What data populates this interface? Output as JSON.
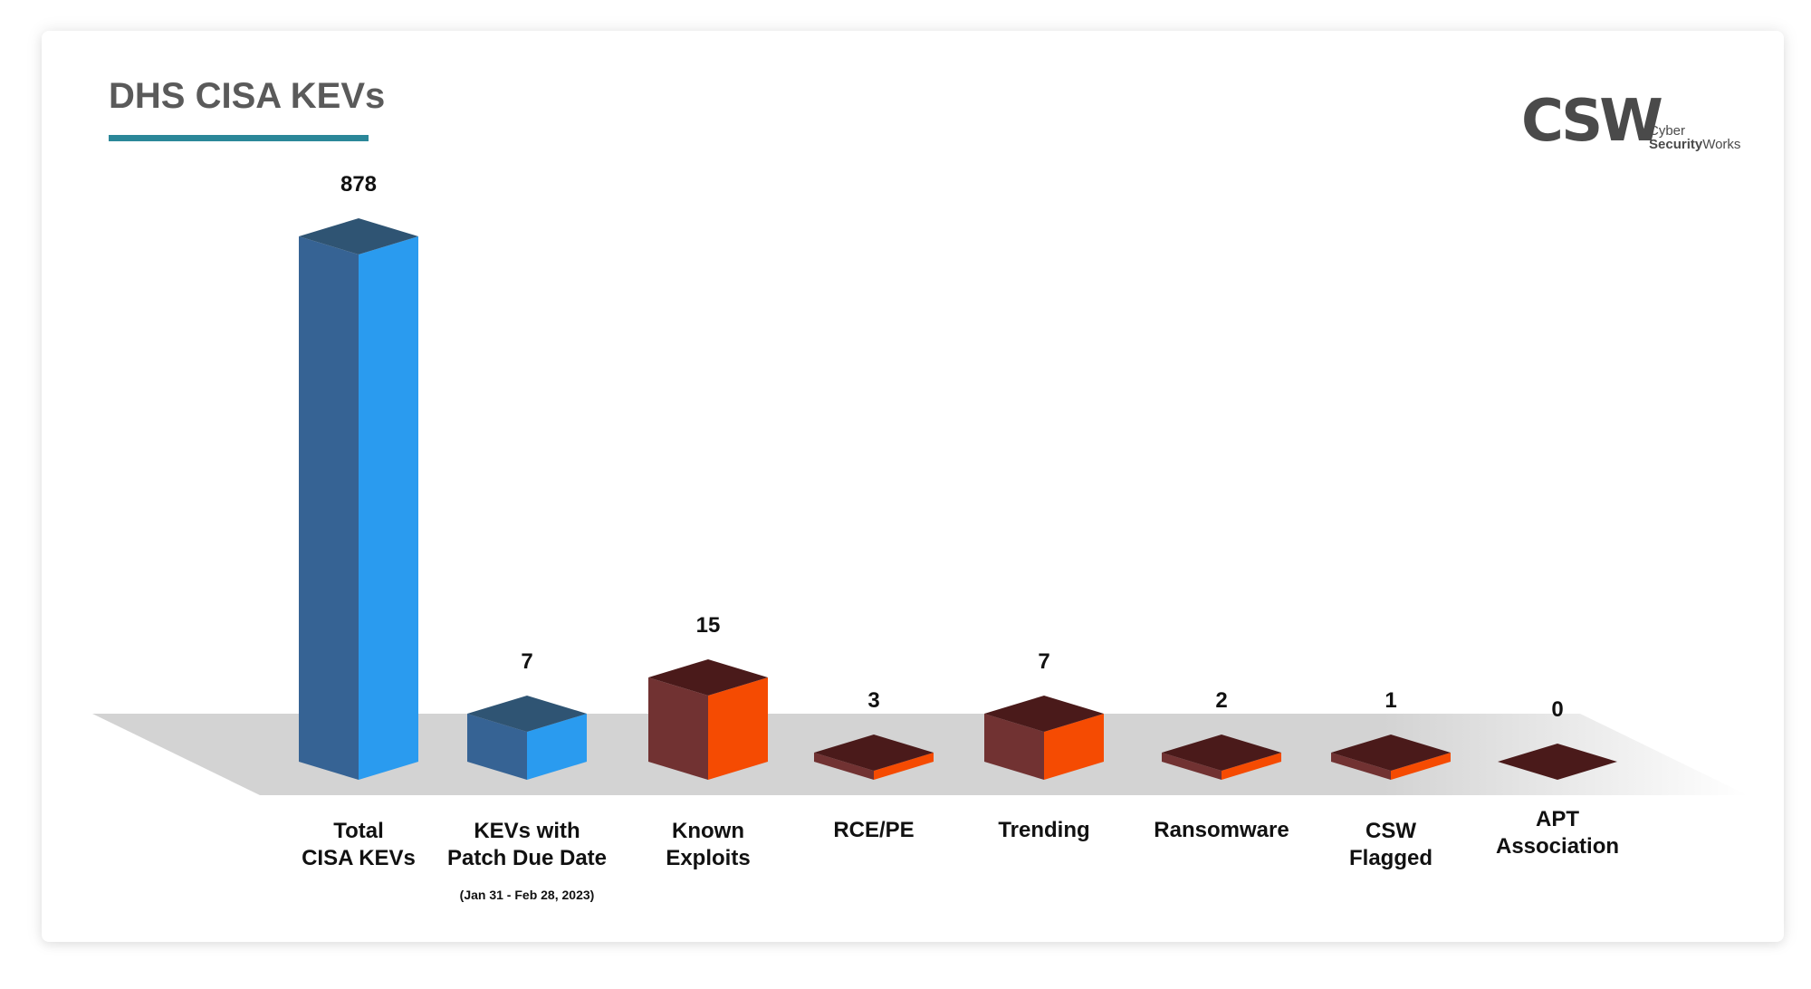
{
  "header": {
    "title": "DHS CISA KEVs"
  },
  "logo": {
    "mark": "CSW",
    "line1": "Cyber",
    "line2_bold": "Security",
    "line2_rest": "Works"
  },
  "colors": {
    "title_text": "#5a5a5a",
    "title_underline": "#2b8799",
    "blue_front": "#2a9bef",
    "blue_side": "#366394",
    "blue_top": "#2f5473",
    "orange_front": "#f54b02",
    "orange_side": "#713232",
    "orange_top": "#4a1a1a",
    "floor": "#d3d3d3"
  },
  "chart_data": {
    "type": "bar",
    "style": "3d-isometric",
    "title": "DHS CISA KEVs",
    "xlabel": "",
    "ylabel": "",
    "categories": [
      [
        "Total",
        "CISA KEVs"
      ],
      [
        "KEVs with",
        "Patch Due Date"
      ],
      [
        "Known",
        "Exploits"
      ],
      [
        "RCE/PE"
      ],
      [
        "Trending"
      ],
      [
        "Ransomware"
      ],
      [
        "CSW",
        "Flagged"
      ],
      [
        "APT",
        "Association"
      ]
    ],
    "notes": [
      "",
      "(Jan 31 - Feb 28, 2023)",
      "",
      "",
      "",
      "",
      "",
      ""
    ],
    "values": [
      878,
      7,
      15,
      3,
      7,
      2,
      1,
      0
    ],
    "bar_color_group": [
      "blue",
      "blue",
      "orange",
      "orange",
      "orange",
      "orange",
      "orange",
      "orange"
    ],
    "data_labels": [
      "878",
      "7",
      "15",
      "3",
      "7",
      "2",
      "1",
      "0"
    ],
    "grid": false,
    "legend": "none",
    "scale": "non-linear (illustrative)"
  }
}
